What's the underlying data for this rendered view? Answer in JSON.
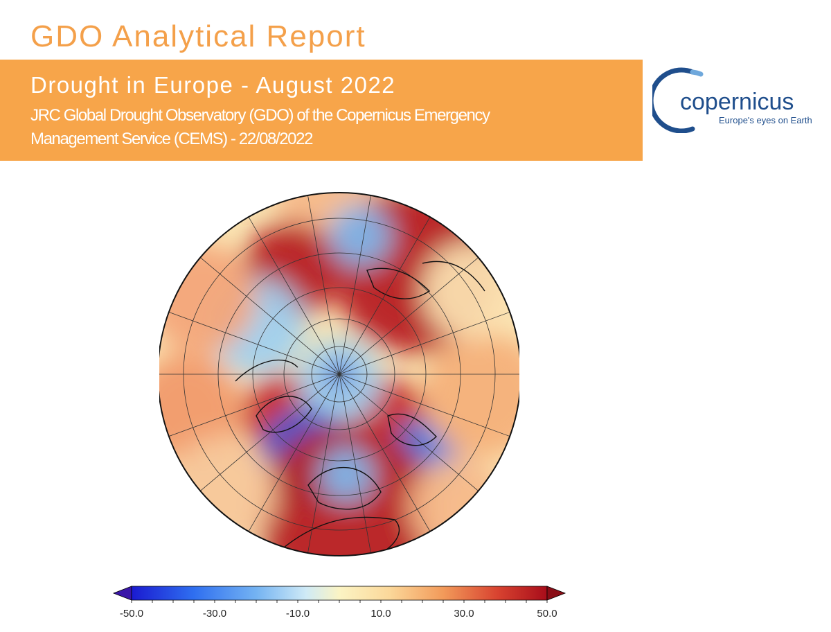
{
  "header": {
    "report_title": "GDO Analytical Report",
    "headline": "Drought in Europe - August 2022",
    "subtitle_line1": "JRC Global Drought Observatory (GDO) of the Copernicus Emergency",
    "subtitle_line2": "Management Service (CEMS) - 22/08/2022"
  },
  "logo": {
    "name": "Copernicus",
    "tagline": "Europe's eyes on Earth"
  },
  "colors": {
    "banner": "#f7a54a",
    "title": "#f4a04a",
    "logo_blue": "#1f4e8c",
    "logo_yellow": "#f2c300"
  },
  "colorbar": {
    "ticks": [
      "-50.0",
      "-30.0",
      "-10.0",
      "10.0",
      "30.0",
      "50.0"
    ],
    "min": -50,
    "max": 50
  }
}
